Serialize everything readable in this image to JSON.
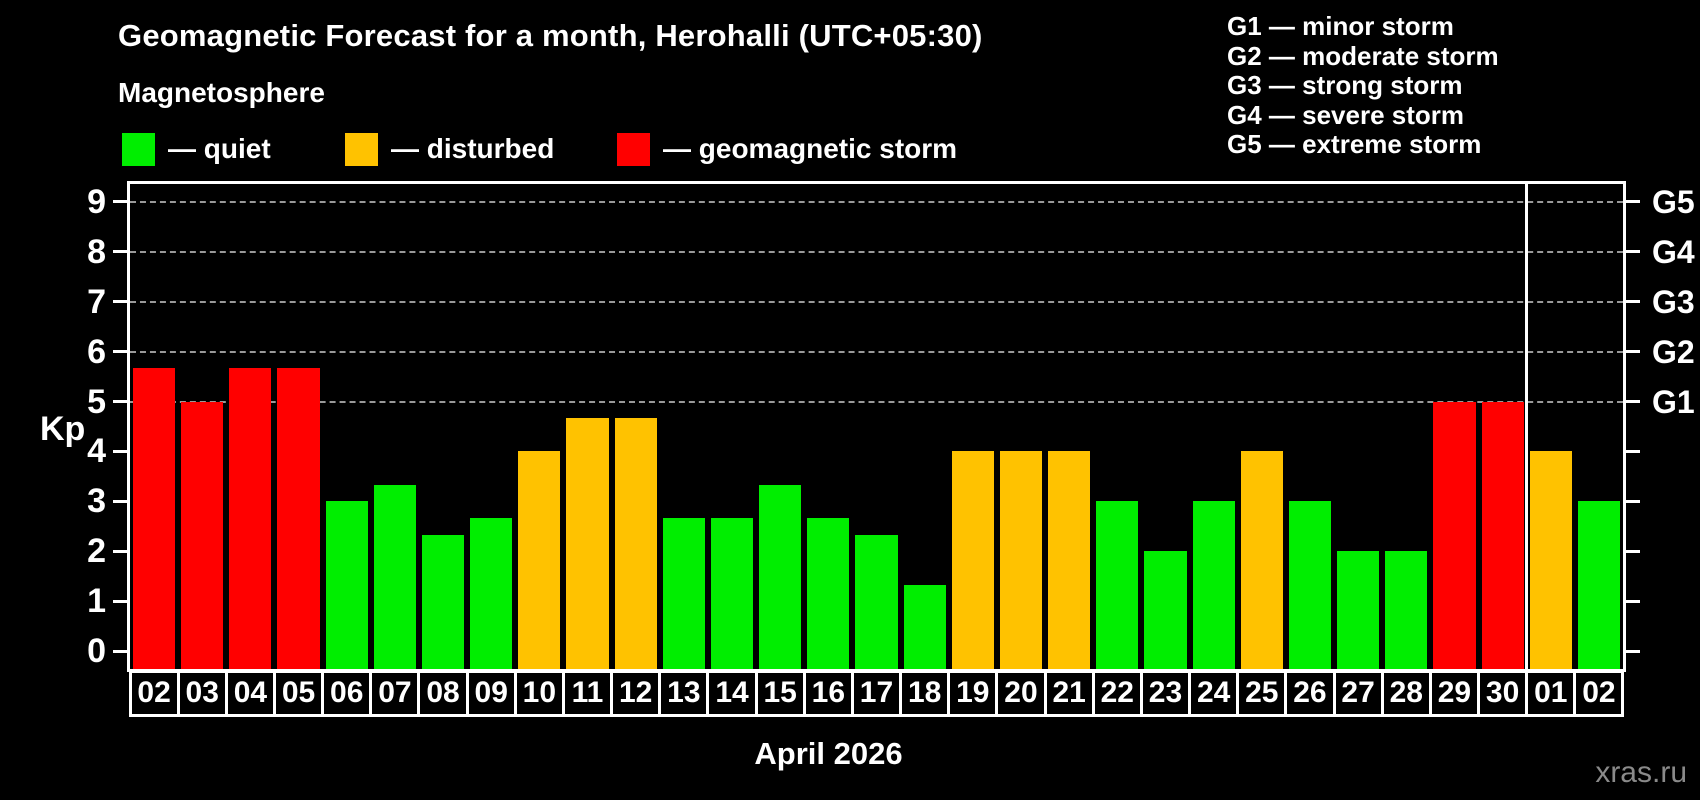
{
  "title": "Geomagnetic Forecast for a month, Herohalli (UTC+05:30)",
  "subtitle": "Magnetosphere",
  "legend": {
    "items": [
      {
        "label": "— quiet",
        "status": "quiet"
      },
      {
        "label": "— disturbed",
        "status": "disturbed"
      },
      {
        "label": "— geomagnetic storm",
        "status": "storm"
      }
    ]
  },
  "storm_scale": [
    "G1 — minor storm",
    "G2 — moderate storm",
    "G3 — strong storm",
    "G4 — severe storm",
    "G5 — extreme storm"
  ],
  "colors": {
    "quiet": "#00ee00",
    "disturbed": "#ffc200",
    "storm": "#ff0000",
    "axis": "#ffffff",
    "grid": "#999999",
    "background": "#000000",
    "watermark": "#8a8a8a"
  },
  "watermark": "xras.ru",
  "chart_data": {
    "type": "bar",
    "title": "Geomagnetic Forecast for a month, Herohalli (UTC+05:30)",
    "xlabel": "April 2026",
    "ylabel": "Kp",
    "ylim": [
      0,
      9.4
    ],
    "y_ticks": [
      0,
      1,
      2,
      3,
      4,
      5,
      6,
      7,
      8,
      9
    ],
    "gridlines": [
      5,
      6,
      7,
      8,
      9
    ],
    "grid": "dashed-horizontal",
    "legend_position": "top-left",
    "g_levels": [
      {
        "kp": 5,
        "label": "G1"
      },
      {
        "kp": 6,
        "label": "G2"
      },
      {
        "kp": 7,
        "label": "G3"
      },
      {
        "kp": 8,
        "label": "G4"
      },
      {
        "kp": 9,
        "label": "G5"
      }
    ],
    "categories": [
      "02",
      "03",
      "04",
      "05",
      "06",
      "07",
      "08",
      "09",
      "10",
      "11",
      "12",
      "13",
      "14",
      "15",
      "16",
      "17",
      "18",
      "19",
      "20",
      "21",
      "22",
      "23",
      "24",
      "25",
      "26",
      "27",
      "28",
      "29",
      "30",
      "01",
      "02"
    ],
    "series": [
      {
        "name": "Kp forecast",
        "values": [
          5.67,
          5,
          5.67,
          5.67,
          3,
          3.33,
          2.33,
          2.67,
          4,
          4.67,
          4.67,
          2.67,
          2.67,
          3.33,
          2.67,
          2.33,
          1.33,
          4,
          4,
          4,
          3,
          2,
          3,
          4,
          3,
          2,
          2,
          5,
          5,
          4,
          3
        ]
      }
    ],
    "statuses": [
      "storm",
      "storm",
      "storm",
      "storm",
      "quiet",
      "quiet",
      "quiet",
      "quiet",
      "disturbed",
      "disturbed",
      "disturbed",
      "quiet",
      "quiet",
      "quiet",
      "quiet",
      "quiet",
      "quiet",
      "disturbed",
      "disturbed",
      "disturbed",
      "quiet",
      "quiet",
      "quiet",
      "disturbed",
      "quiet",
      "quiet",
      "quiet",
      "storm",
      "storm",
      "disturbed",
      "quiet"
    ],
    "separator_after_category_index": 28
  }
}
